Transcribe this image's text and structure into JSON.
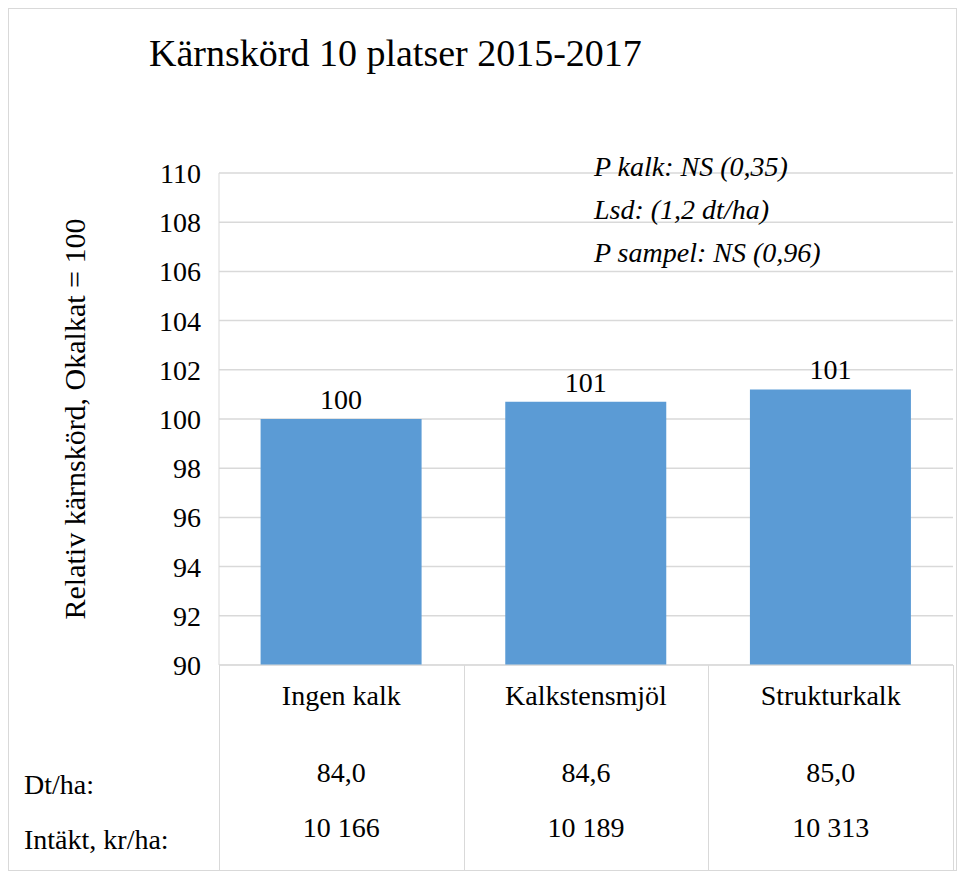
{
  "chart_data": {
    "type": "bar",
    "title": "Kärnskörd 10 platser 2015-2017",
    "y_label": "Relativ kärnskörd, Okalkat = 100",
    "categories": [
      "Ingen kalk",
      "Kalkstensmjöl",
      "Strukturkalk"
    ],
    "values": [
      100,
      100.7,
      101.2
    ],
    "value_labels": [
      "100",
      "101",
      "101"
    ],
    "data_labels": true,
    "color": "#5b9bd5",
    "ylim": [
      90,
      110
    ],
    "yticks": [
      90,
      92,
      94,
      96,
      98,
      100,
      102,
      104,
      106,
      108,
      110
    ],
    "grid": true,
    "annotations": [
      "P kalk: NS (0,35)",
      "Lsd: (1,2 dt/ha)",
      "P sampel: NS (0,96)"
    ],
    "table": {
      "rows": [
        {
          "label": "Dt/ha:",
          "values": [
            "84,0",
            "84,6",
            "85,0"
          ]
        },
        {
          "label": "Intäkt, kr/ha:",
          "values": [
            "10 166",
            "10 189",
            "10 313"
          ]
        }
      ]
    }
  }
}
